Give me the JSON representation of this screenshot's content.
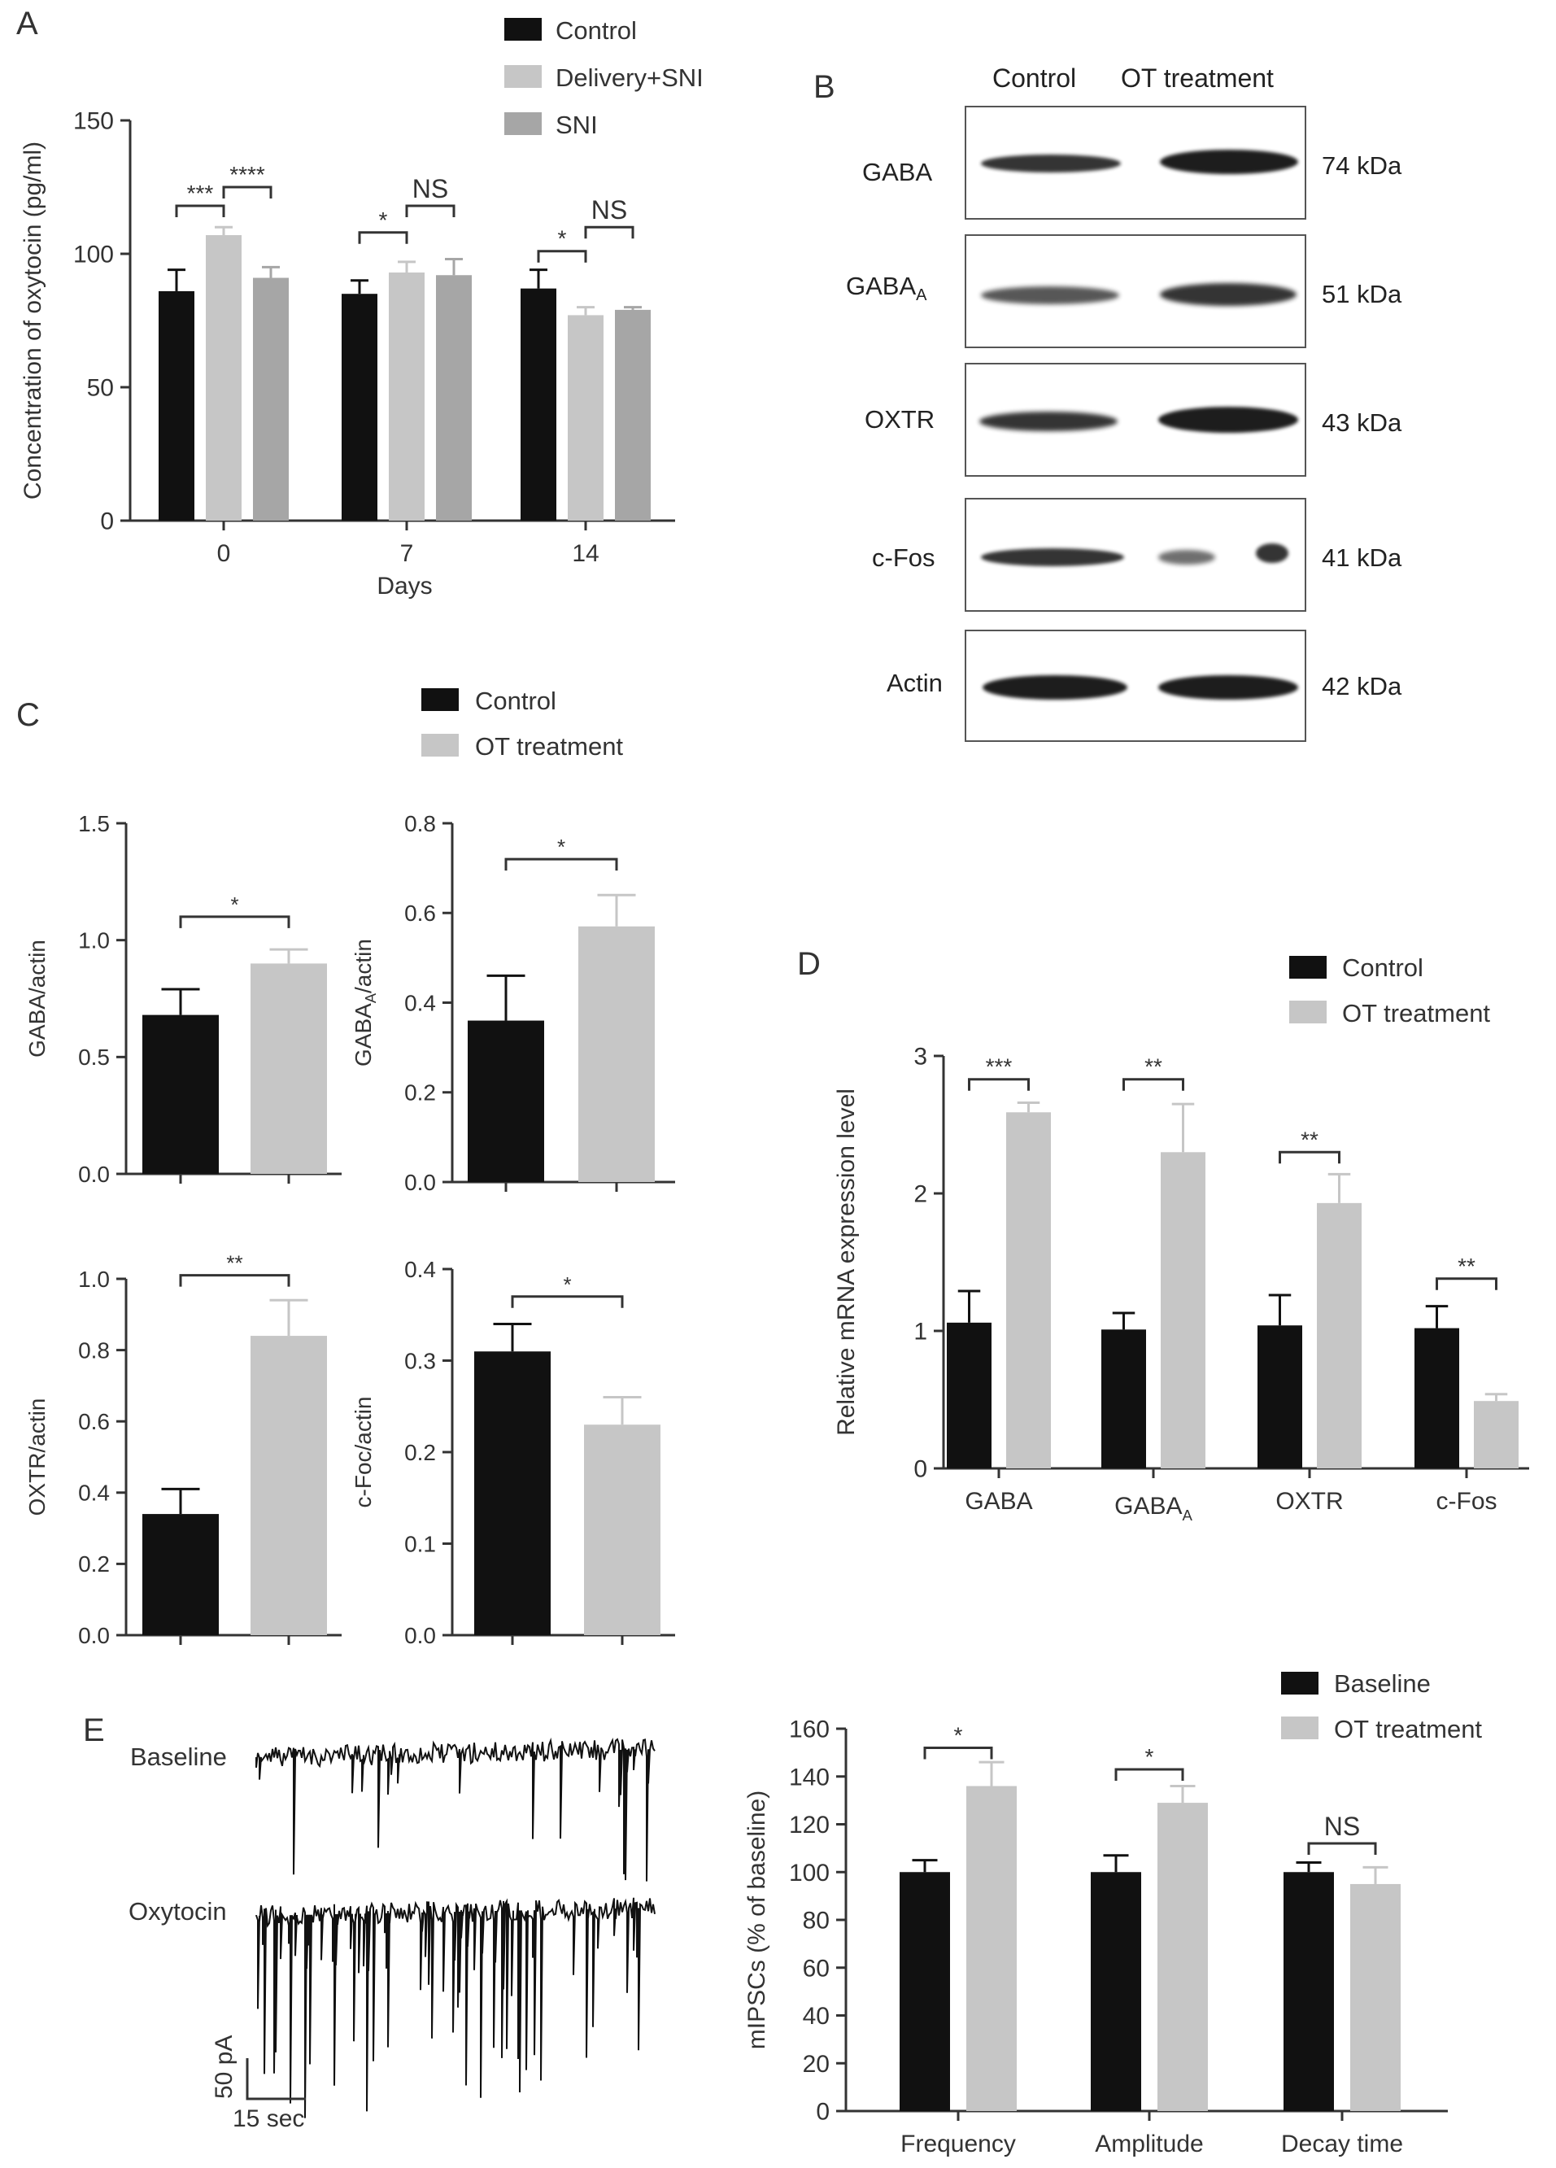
{
  "colors": {
    "black": "#111111",
    "light": "#c6c6c6",
    "mid": "#a6a6a6"
  },
  "panel_labels": {
    "A": "A",
    "B": "B",
    "C": "C",
    "D": "D",
    "E": "E"
  },
  "chart_data": [
    {
      "id": "A",
      "type": "bar",
      "xlabel": "Days",
      "ylabel": "Concentration of oxytocin (pg/ml)",
      "categories": [
        "0",
        "7",
        "14"
      ],
      "ylim": [
        0,
        150
      ],
      "yticks": [
        "0",
        "50",
        "100",
        "150"
      ],
      "series": [
        {
          "name": "Control",
          "color": "#111111",
          "values": [
            86,
            85,
            87
          ],
          "errors": [
            8,
            5,
            7
          ]
        },
        {
          "name": "Delivery+SNI",
          "color": "#c6c6c6",
          "values": [
            107,
            93,
            77
          ],
          "errors": [
            3,
            4,
            3
          ]
        },
        {
          "name": "SNI",
          "color": "#a6a6a6",
          "values": [
            91,
            92,
            79
          ],
          "errors": [
            4,
            6,
            1
          ]
        }
      ],
      "legend_position": "top-right",
      "significance": [
        {
          "group": 0,
          "from": 0,
          "to": 1,
          "label": "***",
          "y": 118
        },
        {
          "group": 0,
          "from": 1,
          "to": 2,
          "label": "****",
          "y": 125
        },
        {
          "group": 1,
          "from": 0,
          "to": 1,
          "label": "*",
          "y": 108
        },
        {
          "group": 1,
          "from": 1,
          "to": 2,
          "label": "NS",
          "y": 118
        },
        {
          "group": 2,
          "from": 0,
          "to": 1,
          "label": "*",
          "y": 101
        },
        {
          "group": 2,
          "from": 1,
          "to": 2,
          "label": "NS",
          "y": 110
        }
      ]
    },
    {
      "id": "C1",
      "type": "bar",
      "ylabel": "GABA/actin",
      "categories": [
        "Control",
        "OT treatment"
      ],
      "ylim": [
        0,
        1.5
      ],
      "yticks": [
        "0.0",
        "0.5",
        "1.0",
        "1.5"
      ],
      "values": [
        0.68,
        0.9
      ],
      "errors": [
        0.11,
        0.06
      ],
      "colors": [
        "#111111",
        "#c6c6c6"
      ],
      "significance": {
        "label": "*",
        "y": 1.1
      }
    },
    {
      "id": "C2",
      "type": "bar",
      "ylabel": "GABAA/actin",
      "categories": [
        "Control",
        "OT treatment"
      ],
      "ylim": [
        0,
        0.8
      ],
      "yticks": [
        "0.0",
        "0.2",
        "0.4",
        "0.6",
        "0.8"
      ],
      "values": [
        0.36,
        0.57
      ],
      "errors": [
        0.1,
        0.07
      ],
      "colors": [
        "#111111",
        "#c6c6c6"
      ],
      "significance": {
        "label": "*",
        "y": 0.72
      }
    },
    {
      "id": "C3",
      "type": "bar",
      "ylabel": "OXTR/actin",
      "categories": [
        "Control",
        "OT treatment"
      ],
      "ylim": [
        0,
        1.0
      ],
      "yticks": [
        "0.0",
        "0.2",
        "0.4",
        "0.6",
        "0.8",
        "1.0"
      ],
      "values": [
        0.34,
        0.84
      ],
      "errors": [
        0.07,
        0.1
      ],
      "colors": [
        "#111111",
        "#c6c6c6"
      ],
      "significance": {
        "label": "**",
        "y": 1.01
      }
    },
    {
      "id": "C4",
      "type": "bar",
      "ylabel": "c-Foc/actin",
      "categories": [
        "Control",
        "OT treatment"
      ],
      "ylim": [
        0,
        0.4
      ],
      "yticks": [
        "0.0",
        "0.1",
        "0.2",
        "0.3",
        "0.4"
      ],
      "values": [
        0.31,
        0.23
      ],
      "errors": [
        0.03,
        0.03
      ],
      "colors": [
        "#111111",
        "#c6c6c6"
      ],
      "significance": {
        "label": "*",
        "y": 0.37
      }
    },
    {
      "id": "D",
      "type": "bar",
      "ylabel": "Relative mRNA expression level",
      "categories": [
        "GABA",
        "GABAA",
        "OXTR",
        "c-Fos"
      ],
      "ylim": [
        0,
        3
      ],
      "yticks": [
        "0",
        "1",
        "2",
        "3"
      ],
      "series": [
        {
          "name": "Control",
          "color": "#111111",
          "values": [
            1.06,
            1.01,
            1.04,
            1.02
          ],
          "errors": [
            0.23,
            0.12,
            0.22,
            0.16
          ]
        },
        {
          "name": "OT treatment",
          "color": "#c6c6c6",
          "values": [
            2.59,
            2.3,
            1.93,
            0.49
          ],
          "errors": [
            0.07,
            0.35,
            0.21,
            0.05
          ]
        }
      ],
      "legend_position": "top-right",
      "significance": [
        {
          "group": 0,
          "label": "***",
          "y": 2.83
        },
        {
          "group": 1,
          "label": "**",
          "y": 2.83
        },
        {
          "group": 2,
          "label": "**",
          "y": 2.3
        },
        {
          "group": 3,
          "label": "**",
          "y": 1.38
        }
      ]
    },
    {
      "id": "E",
      "type": "bar",
      "ylabel": "mIPSCs (% of baseline)",
      "categories": [
        "Frequency",
        "Amplitude",
        "Decay time"
      ],
      "ylim": [
        0,
        160
      ],
      "yticks": [
        "0",
        "20",
        "40",
        "60",
        "80",
        "100",
        "120",
        "140",
        "160"
      ],
      "series": [
        {
          "name": "Baseline",
          "color": "#111111",
          "values": [
            100,
            100,
            100
          ],
          "errors": [
            5,
            7,
            4
          ]
        },
        {
          "name": "OT treatment",
          "color": "#c6c6c6",
          "values": [
            136,
            129,
            95
          ],
          "errors": [
            10,
            7,
            7
          ]
        }
      ],
      "legend_position": "top-right",
      "significance": [
        {
          "group": 0,
          "label": "*",
          "y": 152
        },
        {
          "group": 1,
          "label": "*",
          "y": 143
        },
        {
          "group": 2,
          "label": "NS",
          "y": 112
        }
      ]
    }
  ],
  "legends": {
    "A": [
      "Control",
      "Delivery+SNI",
      "SNI"
    ],
    "C": [
      "Control",
      "OT treatment"
    ],
    "D": [
      "Control",
      "OT treatment"
    ],
    "E": [
      "Baseline",
      "OT treatment"
    ]
  },
  "western_blot": {
    "columns": [
      "Control",
      "OT treatment"
    ],
    "rows": [
      {
        "label": "GABA",
        "subscript": "",
        "kda": "74 kDa"
      },
      {
        "label": "GABA",
        "subscript": "A",
        "kda": "51 kDa"
      },
      {
        "label": "OXTR",
        "subscript": "",
        "kda": "43 kDa"
      },
      {
        "label": "c-Fos",
        "subscript": "",
        "kda": "41 kDa"
      },
      {
        "label": "Actin",
        "subscript": "",
        "kda": "42 kDa"
      }
    ]
  },
  "traces": {
    "labels": [
      "Baseline",
      "Oxytocin"
    ],
    "scale_y": "50 pA",
    "scale_x": "15 sec"
  }
}
